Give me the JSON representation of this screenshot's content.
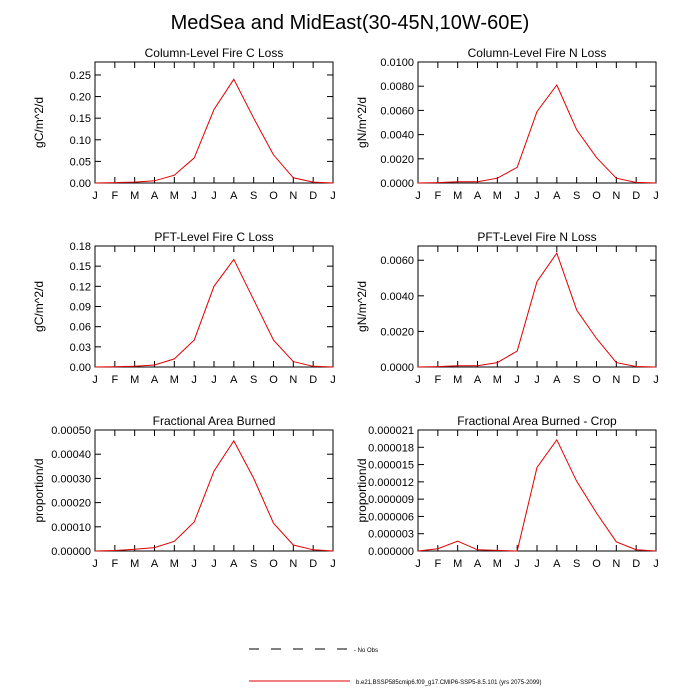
{
  "figure": {
    "title": "MedSea and MidEast(30-45N,10W-60E)"
  },
  "legend": {
    "obs_label": "- No Obs",
    "model_label": "b.e21.BSSP585cmip6.f09_g17.CMIP6-SSP5-8.5.101 (yrs 2075-2099)",
    "model_color": "#e00000",
    "obs_color": "#000000"
  },
  "chart_data": [
    {
      "type": "line",
      "title": "Column-Level Fire C Loss",
      "ylabel": "gC/m^2/d",
      "xlabel": "",
      "x": [
        "J",
        "F",
        "M",
        "A",
        "M",
        "J",
        "J",
        "A",
        "S",
        "O",
        "N",
        "D",
        "J"
      ],
      "ylim": [
        0,
        0.28
      ],
      "yticks": [
        "0.00",
        "0.05",
        "0.10",
        "0.15",
        "0.20",
        "0.25"
      ],
      "ytick_values": [
        0,
        0.05,
        0.1,
        0.15,
        0.2,
        0.25
      ],
      "series": [
        {
          "values": [
            0.0,
            0.001,
            0.002,
            0.005,
            0.018,
            0.058,
            0.17,
            0.24,
            0.15,
            0.065,
            0.012,
            0.002,
            0.0
          ],
          "color": "#e00000"
        }
      ]
    },
    {
      "type": "line",
      "title": "Column-Level Fire N Loss",
      "ylabel": "gN/m^2/d",
      "xlabel": "",
      "x": [
        "J",
        "F",
        "M",
        "A",
        "M",
        "J",
        "J",
        "A",
        "S",
        "O",
        "N",
        "D",
        "J"
      ],
      "ylim": [
        0,
        0.01
      ],
      "yticks": [
        "0.0000",
        "0.0020",
        "0.0040",
        "0.0060",
        "0.0080",
        "0.0100"
      ],
      "ytick_values": [
        0,
        0.002,
        0.004,
        0.006,
        0.008,
        0.01
      ],
      "series": [
        {
          "values": [
            0.0,
            3e-05,
            0.0001,
            0.00011,
            0.0004,
            0.0013,
            0.0059,
            0.0081,
            0.0044,
            0.0021,
            0.0004,
            5e-05,
            0.0
          ],
          "color": "#e00000"
        }
      ]
    },
    {
      "type": "line",
      "title": "PFT-Level Fire C Loss",
      "ylabel": "gC/m^2/d",
      "xlabel": "",
      "x": [
        "J",
        "F",
        "M",
        "A",
        "M",
        "J",
        "J",
        "A",
        "S",
        "O",
        "N",
        "D",
        "J"
      ],
      "ylim": [
        0,
        0.18
      ],
      "yticks": [
        "0.00",
        "0.03",
        "0.06",
        "0.09",
        "0.12",
        "0.15",
        "0.18"
      ],
      "ytick_values": [
        0,
        0.03,
        0.06,
        0.09,
        0.12,
        0.15,
        0.18
      ],
      "series": [
        {
          "values": [
            0.0,
            0.0005,
            0.001,
            0.003,
            0.012,
            0.04,
            0.12,
            0.16,
            0.1,
            0.04,
            0.008,
            0.001,
            0.0
          ],
          "color": "#e00000"
        }
      ]
    },
    {
      "type": "line",
      "title": "PFT-Level Fire N Loss",
      "ylabel": "gN/m^2/d",
      "xlabel": "",
      "x": [
        "J",
        "F",
        "M",
        "A",
        "M",
        "J",
        "J",
        "A",
        "S",
        "O",
        "N",
        "D",
        "J"
      ],
      "ylim": [
        0,
        0.0068
      ],
      "yticks": [
        "0.0000",
        "0.0020",
        "0.0040",
        "0.0060"
      ],
      "ytick_values": [
        0,
        0.002,
        0.004,
        0.006
      ],
      "series": [
        {
          "values": [
            0.0,
            2e-05,
            7e-05,
            7e-05,
            0.00025,
            0.0009,
            0.0048,
            0.0064,
            0.0032,
            0.0016,
            0.00025,
            3e-05,
            0.0
          ],
          "color": "#e00000"
        }
      ]
    },
    {
      "type": "line",
      "title": "Fractional Area Burned",
      "ylabel": "proportion/d",
      "xlabel": "",
      "x": [
        "J",
        "F",
        "M",
        "A",
        "M",
        "J",
        "J",
        "A",
        "S",
        "O",
        "N",
        "D",
        "J"
      ],
      "ylim": [
        0,
        0.0005
      ],
      "yticks": [
        "0.00000",
        "0.00010",
        "0.00020",
        "0.00030",
        "0.00040",
        "0.00050"
      ],
      "ytick_values": [
        0,
        0.0001,
        0.0002,
        0.0003,
        0.0004,
        0.0005
      ],
      "series": [
        {
          "values": [
            0.0,
            2e-06,
            7e-06,
            1.4e-05,
            4e-05,
            0.00012,
            0.00033,
            0.000455,
            0.0003,
            0.000115,
            2.5e-05,
            5e-06,
            0.0
          ],
          "color": "#e00000"
        }
      ]
    },
    {
      "type": "line",
      "title": "Fractional Area Burned - Crop",
      "ylabel": "proportion/d",
      "xlabel": "",
      "x": [
        "J",
        "F",
        "M",
        "A",
        "M",
        "J",
        "J",
        "A",
        "S",
        "O",
        "N",
        "D",
        "J"
      ],
      "ylim": [
        0,
        2.1e-05
      ],
      "yticks": [
        "0.000000",
        "0.000003",
        "0.000006",
        "0.000009",
        "0.000012",
        "0.000015",
        "0.000018",
        "0.000021"
      ],
      "ytick_values": [
        0,
        3e-06,
        6e-06,
        9e-06,
        1.2e-05,
        1.5e-05,
        1.8e-05,
        2.1e-05
      ],
      "series": [
        {
          "values": [
            0.0,
            4e-07,
            1.7e-06,
            2e-07,
            1e-07,
            0.0,
            1.45e-05,
            1.93e-05,
            1.21e-05,
            6.6e-06,
            1.6e-06,
            2e-07,
            0.0
          ],
          "color": "#e00000"
        }
      ]
    }
  ]
}
